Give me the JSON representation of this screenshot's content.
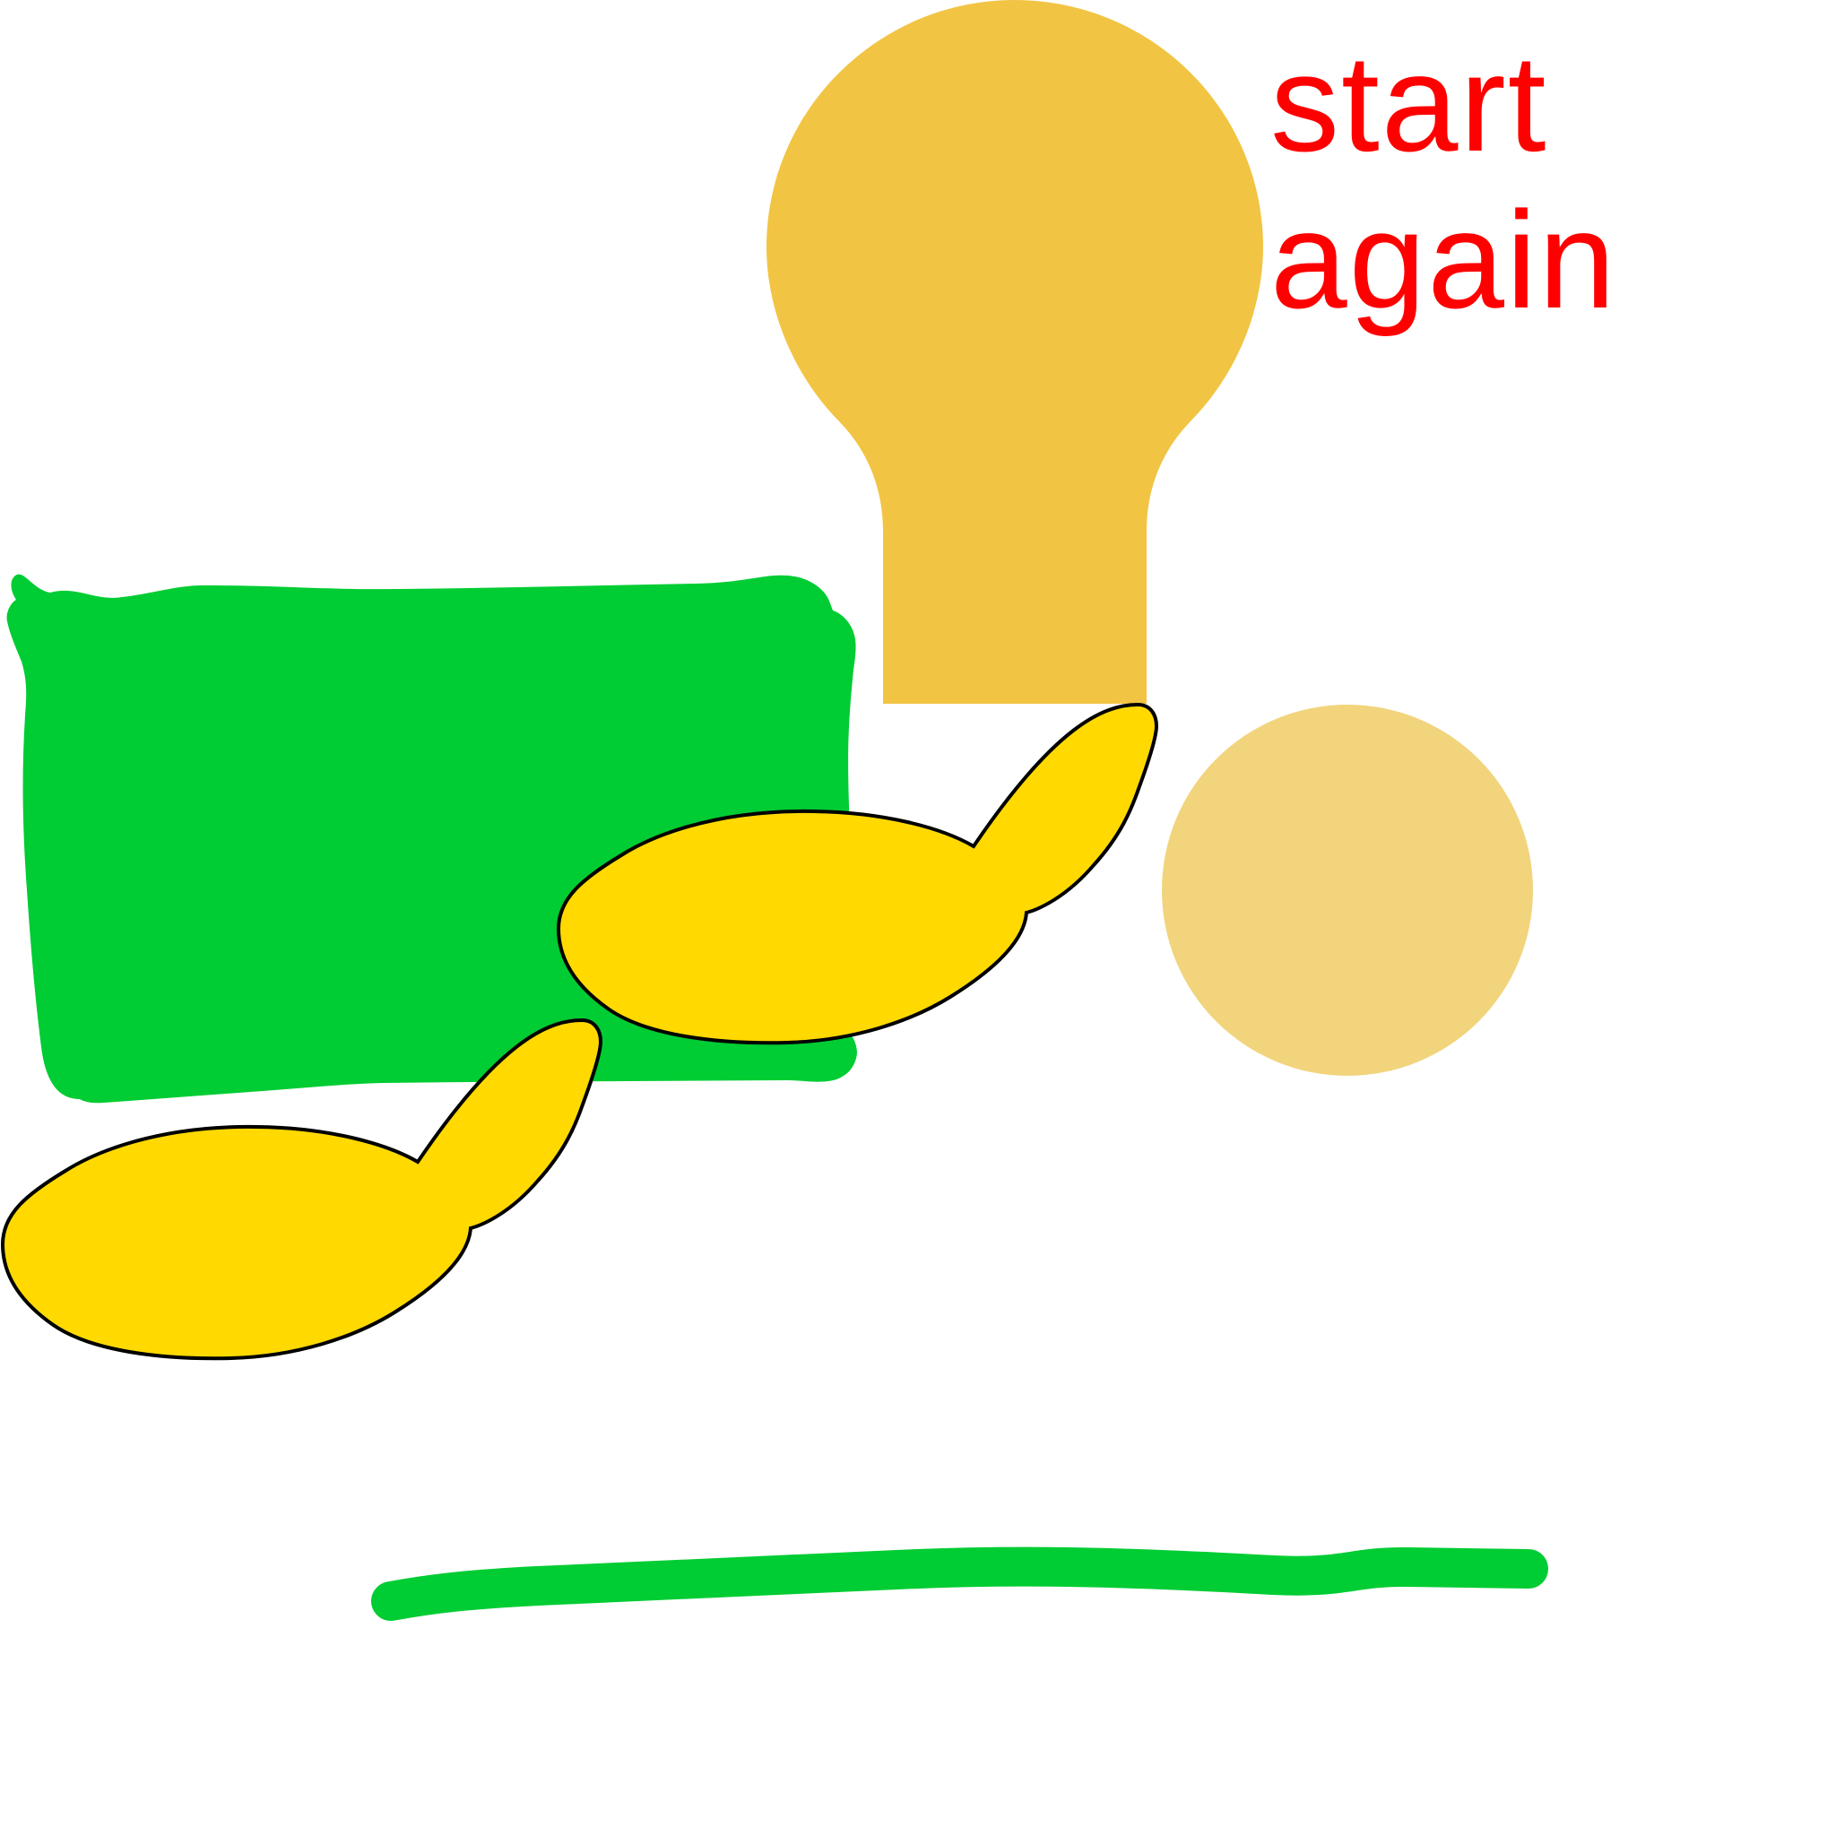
{
  "caption": {
    "text": "start\nagain"
  },
  "colors": {
    "background": "#ffffff",
    "green_shape": "#00cc33",
    "yellow_shape": "#ffd900",
    "bulb_orange": "#f2c443",
    "pale_circle": "#f1d47c",
    "caption_red": "#ff0000",
    "outline_black": "#000000"
  }
}
